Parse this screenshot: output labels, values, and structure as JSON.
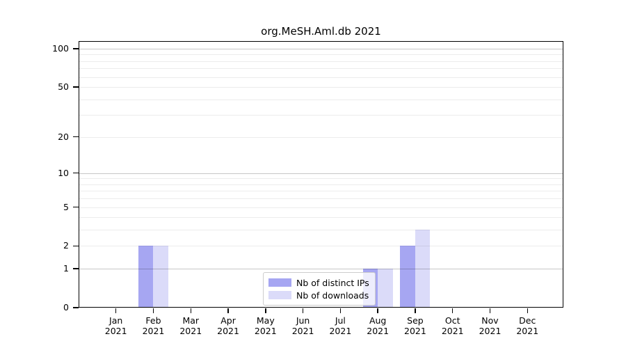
{
  "figure": {
    "title": "org.MeSH.Aml.db 2021"
  },
  "chart_data": {
    "type": "bar",
    "title": "org.MeSH.Aml.db 2021",
    "categories": [
      "Jan",
      "Feb",
      "Mar",
      "Apr",
      "May",
      "Jun",
      "Jul",
      "Aug",
      "Sep",
      "Oct",
      "Nov",
      "Dec"
    ],
    "year_label": "2021",
    "series": [
      {
        "name": "Nb of distinct IPs",
        "color": "#a6a6f2",
        "values": [
          0,
          2,
          0,
          0,
          0,
          0,
          0,
          1,
          2,
          0,
          0,
          0
        ]
      },
      {
        "name": "Nb of downloads",
        "color": "#dbdbf9",
        "values": [
          0,
          2,
          0,
          0,
          0,
          0,
          0,
          1,
          3,
          0,
          0,
          0
        ]
      }
    ],
    "y_axis": {
      "scale": "log1p",
      "tick_values": [
        0,
        1,
        2,
        5,
        10,
        20,
        50,
        100
      ],
      "top_value": 114.6,
      "major_grid_values": [
        1,
        10,
        100
      ],
      "minor_grid_values": [
        2,
        3,
        4,
        5,
        6,
        7,
        8,
        9,
        20,
        30,
        40,
        50,
        60,
        70,
        80,
        90
      ]
    },
    "legend": {
      "entries": [
        "Nb of distinct IPs",
        "Nb of downloads"
      ],
      "position": "bottom-center"
    },
    "grid": "on",
    "xlabel": "",
    "ylabel": ""
  },
  "colors": {
    "background": "#ffffff",
    "frame": "#000000",
    "text": "#000000",
    "major_grid": "rgba(0,0,0,0.22)",
    "minor_grid": "rgba(0,0,0,0.075)",
    "legend_border": "#cccccc",
    "legend_background": "rgba(255,255,255,0.8)"
  }
}
